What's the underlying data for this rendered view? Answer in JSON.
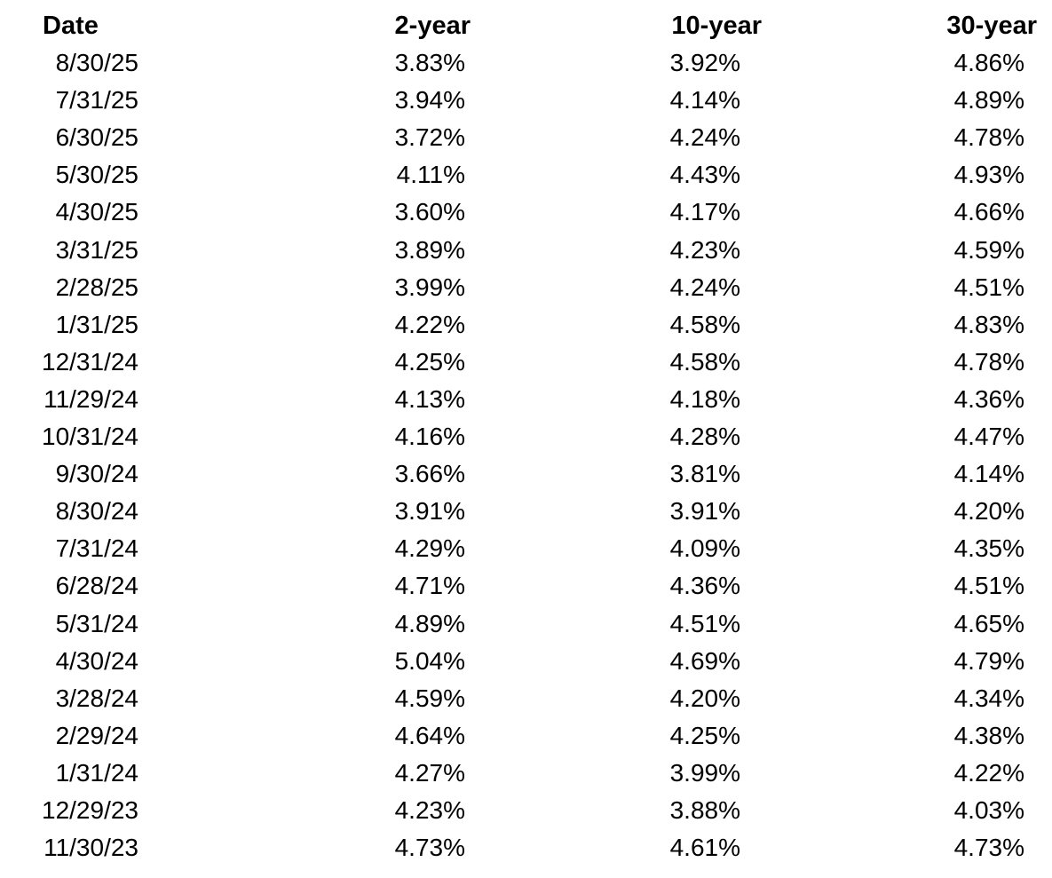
{
  "table": {
    "headers": [
      "Date",
      "2-year",
      "10-year",
      "30-year"
    ],
    "rows": [
      [
        "8/30/25",
        "3.83%",
        "3.92%",
        "4.86%"
      ],
      [
        "7/31/25",
        "3.94%",
        "4.14%",
        "4.89%"
      ],
      [
        "6/30/25",
        "3.72%",
        "4.24%",
        "4.78%"
      ],
      [
        "5/30/25",
        "4.11%",
        "4.43%",
        "4.93%"
      ],
      [
        "4/30/25",
        "3.60%",
        "4.17%",
        "4.66%"
      ],
      [
        "3/31/25",
        "3.89%",
        "4.23%",
        "4.59%"
      ],
      [
        "2/28/25",
        "3.99%",
        "4.24%",
        "4.51%"
      ],
      [
        "1/31/25",
        "4.22%",
        "4.58%",
        "4.83%"
      ],
      [
        "12/31/24",
        "4.25%",
        "4.58%",
        "4.78%"
      ],
      [
        "11/29/24",
        "4.13%",
        "4.18%",
        "4.36%"
      ],
      [
        "10/31/24",
        "4.16%",
        "4.28%",
        "4.47%"
      ],
      [
        "9/30/24",
        "3.66%",
        "3.81%",
        "4.14%"
      ],
      [
        "8/30/24",
        "3.91%",
        "3.91%",
        "4.20%"
      ],
      [
        "7/31/24",
        "4.29%",
        "4.09%",
        "4.35%"
      ],
      [
        "6/28/24",
        "4.71%",
        "4.36%",
        "4.51%"
      ],
      [
        "5/31/24",
        "4.89%",
        "4.51%",
        "4.65%"
      ],
      [
        "4/30/24",
        "5.04%",
        "4.69%",
        "4.79%"
      ],
      [
        "3/28/24",
        "4.59%",
        "4.20%",
        "4.34%"
      ],
      [
        "2/29/24",
        "4.64%",
        "4.25%",
        "4.38%"
      ],
      [
        "1/31/24",
        "4.27%",
        "3.99%",
        "4.22%"
      ],
      [
        "12/29/23",
        "4.23%",
        "3.88%",
        "4.03%"
      ],
      [
        "11/30/23",
        "4.73%",
        "4.61%",
        "4.73%"
      ]
    ]
  }
}
